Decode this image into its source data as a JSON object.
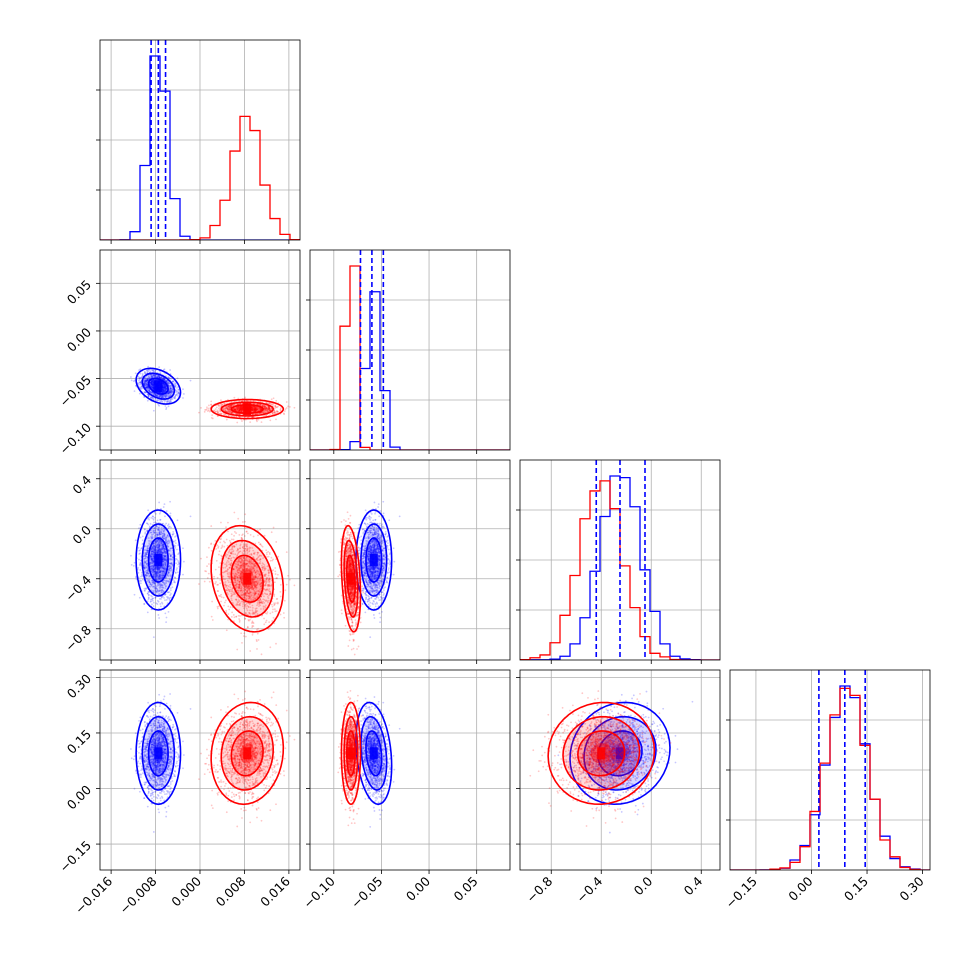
{
  "chart_data": {
    "type": "corner",
    "title": "",
    "colors": {
      "blue": "#0000ff",
      "red": "#ff0000",
      "grid": "#b0b0b0"
    },
    "params": [
      {
        "range": [
          -0.018,
          0.018
        ],
        "ticks": [
          -0.016,
          -0.008,
          0.0,
          0.008,
          0.016
        ],
        "tick_labels": [
          "−0.016",
          "−0.008",
          "0.000",
          "0.008",
          "0.016"
        ]
      },
      {
        "range": [
          -0.125,
          0.085
        ],
        "ticks": [
          -0.1,
          -0.05,
          0.0,
          0.05
        ],
        "tick_labels": [
          "−0.10",
          "−0.05",
          "0.00",
          "0.05"
        ]
      },
      {
        "range": [
          -1.05,
          0.55
        ],
        "ticks": [
          -0.8,
          -0.4,
          0.0,
          0.4
        ],
        "tick_labels": [
          "−0.8",
          "−0.4",
          "0.0",
          "0.4"
        ]
      },
      {
        "range": [
          -0.22,
          0.32
        ],
        "ticks": [
          -0.15,
          0.0,
          0.15,
          0.3
        ],
        "tick_labels": [
          "−0.15",
          "0.00",
          "0.15",
          "0.30"
        ]
      }
    ],
    "series": [
      {
        "color": "blue",
        "mean": [
          -0.0075,
          -0.058,
          -0.25,
          0.095
        ],
        "std": [
          0.0016,
          0.0075,
          0.16,
          0.055
        ],
        "corr": {
          "0-1": -0.35,
          "0-2": 0.0,
          "0-3": 0.0,
          "1-2": 0.0,
          "1-3": -0.25,
          "2-3": 0.1
        }
      },
      {
        "color": "red",
        "mean": [
          0.0085,
          -0.082,
          -0.4,
          0.095
        ],
        "std": [
          0.0026,
          0.004,
          0.17,
          0.055
        ],
        "corr": {
          "0-1": 0.0,
          "0-2": -0.2,
          "0-3": 0.1,
          "1-2": -0.3,
          "1-3": 0.0,
          "2-3": 0.05
        }
      }
    ],
    "quantile_lines": [
      [
        -0.0088,
        -0.0075,
        -0.0062
      ],
      [
        -0.072,
        -0.06,
        -0.048
      ],
      [
        -0.44,
        -0.25,
        -0.05
      ],
      [
        0.02,
        0.09,
        0.145
      ]
    ],
    "grid": true
  }
}
